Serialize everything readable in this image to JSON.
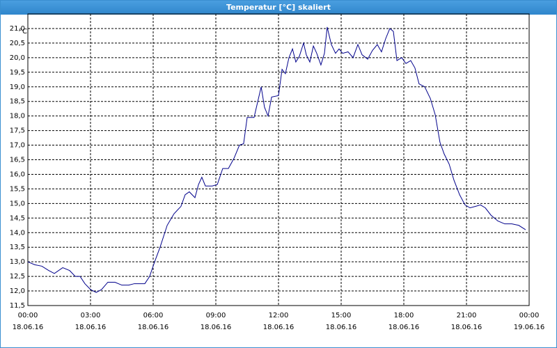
{
  "chart_data": {
    "type": "line",
    "title": "Temperatur [°C] skaliert",
    "y_label": "°C",
    "xlim": [
      0,
      24
    ],
    "ylim": [
      11.5,
      21.5
    ],
    "grid": true,
    "xticks": [
      {
        "value": 0,
        "label": "00:00",
        "date": "18.06.16"
      },
      {
        "value": 3,
        "label": "03:00",
        "date": "18.06.16"
      },
      {
        "value": 6,
        "label": "06:00",
        "date": "18.06.16"
      },
      {
        "value": 9,
        "label": "09:00",
        "date": "18.06.16"
      },
      {
        "value": 12,
        "label": "12:00",
        "date": "18.06.16"
      },
      {
        "value": 15,
        "label": "15:00",
        "date": "18.06.16"
      },
      {
        "value": 18,
        "label": "18:00",
        "date": "18.06.16"
      },
      {
        "value": 21,
        "label": "21:00",
        "date": "18.06.16"
      },
      {
        "value": 24,
        "label": "00:00",
        "date": "19.06.16"
      }
    ],
    "yticks": [
      {
        "value": 11.5,
        "label": "11,5"
      },
      {
        "value": 12,
        "label": "12,0"
      },
      {
        "value": 12.5,
        "label": "12,5"
      },
      {
        "value": 13,
        "label": "13,0"
      },
      {
        "value": 13.5,
        "label": "13,5"
      },
      {
        "value": 14,
        "label": "14,0"
      },
      {
        "value": 14.5,
        "label": "14,5"
      },
      {
        "value": 15,
        "label": "15,0"
      },
      {
        "value": 15.5,
        "label": "15,5"
      },
      {
        "value": 16,
        "label": "16,0"
      },
      {
        "value": 16.5,
        "label": "16,5"
      },
      {
        "value": 17,
        "label": "17,0"
      },
      {
        "value": 17.5,
        "label": "17,5"
      },
      {
        "value": 18,
        "label": "18,0"
      },
      {
        "value": 18.5,
        "label": "18,5"
      },
      {
        "value": 19,
        "label": "19,0"
      },
      {
        "value": 19.5,
        "label": "19,5"
      },
      {
        "value": 20,
        "label": "20,0"
      },
      {
        "value": 20.5,
        "label": "20,5"
      },
      {
        "value": 21,
        "label": "21,0"
      }
    ],
    "x": [
      0,
      0.33,
      0.67,
      1,
      1.27,
      1.67,
      2,
      2.27,
      2.5,
      2.73,
      3,
      3.27,
      3.53,
      3.83,
      4.17,
      4.5,
      4.83,
      5.1,
      5.33,
      5.6,
      5.83,
      6.07,
      6.33,
      6.67,
      7,
      7.33,
      7.53,
      7.73,
      8,
      8.17,
      8.33,
      8.5,
      8.83,
      9.07,
      9.33,
      9.6,
      9.87,
      10.13,
      10.33,
      10.5,
      10.83,
      11.17,
      11.33,
      11.5,
      11.67,
      12,
      12.17,
      12.33,
      12.5,
      12.67,
      12.83,
      13,
      13.2,
      13.33,
      13.5,
      13.67,
      13.83,
      14.03,
      14.2,
      14.33,
      14.53,
      14.73,
      14.9,
      15.07,
      15.33,
      15.57,
      15.8,
      16,
      16.27,
      16.5,
      16.73,
      16.93,
      17.13,
      17.33,
      17.5,
      17.67,
      17.9,
      18.1,
      18.33,
      18.53,
      18.73,
      19,
      19.27,
      19.5,
      19.73,
      19.93,
      20.17,
      20.4,
      20.67,
      20.93,
      21.17,
      21.43,
      21.67,
      21.9,
      22.17,
      22.5,
      22.83,
      23.17,
      23.5,
      23.83
    ],
    "series": [
      {
        "name": "Temperatur",
        "color": "#00008b",
        "values": [
          13.0,
          12.9,
          12.85,
          12.7,
          12.6,
          12.8,
          12.7,
          12.5,
          12.5,
          12.25,
          12.05,
          11.95,
          12.05,
          12.3,
          12.3,
          12.2,
          12.2,
          12.25,
          12.25,
          12.25,
          12.5,
          13.0,
          13.5,
          14.25,
          14.65,
          14.9,
          15.3,
          15.4,
          15.2,
          15.65,
          15.9,
          15.6,
          15.6,
          15.65,
          16.2,
          16.2,
          16.55,
          17.0,
          17.05,
          17.95,
          17.95,
          19.0,
          18.3,
          18.0,
          18.65,
          18.7,
          19.6,
          19.45,
          20.0,
          20.3,
          19.85,
          20.05,
          20.5,
          20.1,
          19.85,
          20.4,
          20.15,
          19.75,
          20.15,
          21.05,
          20.45,
          20.15,
          20.3,
          20.15,
          20.2,
          20.0,
          20.45,
          20.1,
          19.95,
          20.25,
          20.45,
          20.2,
          20.65,
          21.0,
          20.9,
          19.9,
          20.0,
          19.8,
          19.9,
          19.65,
          19.1,
          19.0,
          18.6,
          18.05,
          17.1,
          16.7,
          16.35,
          15.8,
          15.3,
          14.95,
          14.85,
          14.9,
          14.95,
          14.85,
          14.6,
          14.4,
          14.3,
          14.3,
          14.25,
          14.1
        ]
      }
    ]
  }
}
